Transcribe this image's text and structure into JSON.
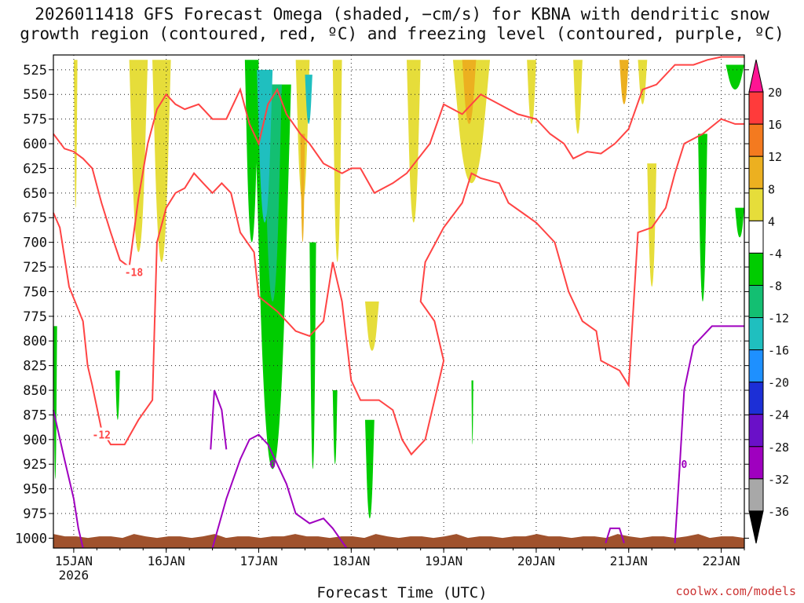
{
  "title": {
    "line1": "2026011418 GFS Forecast Omega (shaded, −cm/s) for KBNA with dendritic snow",
    "line2": "growth region (contoured, red, ºC) and freezing level (contoured, purple, ºC)"
  },
  "xlabel": "Forecast Time (UTC)",
  "credit": "coolwx.com/models",
  "chart_data": {
    "type": "heatmap",
    "y_axis": {
      "label": "",
      "ticks": [
        525,
        550,
        575,
        600,
        625,
        650,
        675,
        700,
        725,
        750,
        775,
        800,
        825,
        850,
        875,
        900,
        925,
        950,
        975,
        1000
      ],
      "range": [
        1010,
        510
      ],
      "inverted": true,
      "grid": true
    },
    "x_axis": {
      "tick_labels": [
        "15JAN",
        "16JAN",
        "17JAN",
        "18JAN",
        "19JAN",
        "20JAN",
        "21JAN",
        "22JAN"
      ],
      "tick_positions": [
        1,
        2,
        3,
        4,
        5,
        6,
        7,
        8
      ],
      "first_tick_sublabel": "2026",
      "range": [
        0.78,
        8.25
      ],
      "grid": true
    },
    "colorbar": {
      "labels": [
        "20",
        "16",
        "12",
        "8",
        "4",
        "-4",
        "-8",
        "-12",
        "-16",
        "-20",
        "-24",
        "-28",
        "-32",
        "-36"
      ],
      "colors": [
        "#ff1493",
        "#ff3b3b",
        "#f47a1f",
        "#ecb020",
        "#e6dd3a",
        "#ffffff",
        "#00cc00",
        "#13bf72",
        "#1fbfbf",
        "#1e90ff",
        "#1c2fd6",
        "#6a10c8",
        "#9f00bf",
        "#a8a8a8",
        "#000000"
      ]
    },
    "omega_shading": [
      {
        "class": "4",
        "x": [
          1.0,
          1.04
        ],
        "p": [
          515,
          665
        ],
        "color": "#e6dd3a"
      },
      {
        "class": "4",
        "x": [
          1.6,
          1.8
        ],
        "p": [
          515,
          710
        ],
        "color": "#e6dd3a"
      },
      {
        "class": "4",
        "x": [
          1.85,
          2.05
        ],
        "p": [
          515,
          720
        ],
        "color": "#e6dd3a"
      },
      {
        "class": "4",
        "x": [
          3.4,
          3.55
        ],
        "p": [
          515,
          660
        ],
        "color": "#e6dd3a"
      },
      {
        "class": "4",
        "x": [
          3.8,
          3.9
        ],
        "p": [
          515,
          720
        ],
        "color": "#e6dd3a"
      },
      {
        "class": "4",
        "x": [
          4.6,
          4.75
        ],
        "p": [
          515,
          680
        ],
        "color": "#e6dd3a"
      },
      {
        "class": "4",
        "x": [
          5.1,
          5.5
        ],
        "p": [
          515,
          640
        ],
        "color": "#e6dd3a"
      },
      {
        "class": "4",
        "x": [
          5.9,
          6.0
        ],
        "p": [
          515,
          580
        ],
        "color": "#e6dd3a"
      },
      {
        "class": "4",
        "x": [
          6.4,
          6.5
        ],
        "p": [
          515,
          590
        ],
        "color": "#e6dd3a"
      },
      {
        "class": "4",
        "x": [
          7.1,
          7.2
        ],
        "p": [
          515,
          560
        ],
        "color": "#e6dd3a"
      },
      {
        "class": "4",
        "x": [
          7.2,
          7.3
        ],
        "p": [
          620,
          745
        ],
        "color": "#e6dd3a"
      },
      {
        "class": "4",
        "x": [
          4.15,
          4.3
        ],
        "p": [
          760,
          810
        ],
        "color": "#e6dd3a"
      },
      {
        "class": "8",
        "x": [
          3.45,
          3.5
        ],
        "p": [
          590,
          700
        ],
        "color": "#ecb020"
      },
      {
        "class": "8",
        "x": [
          5.2,
          5.35
        ],
        "p": [
          515,
          580
        ],
        "color": "#ecb020"
      },
      {
        "class": "8",
        "x": [
          6.9,
          7.0
        ],
        "p": [
          515,
          560
        ],
        "color": "#ecb020"
      },
      {
        "class": "-4",
        "x": [
          2.85,
          3.0
        ],
        "p": [
          515,
          700
        ],
        "color": "#00cc00"
      },
      {
        "class": "-4",
        "x": [
          2.95,
          3.35
        ],
        "p": [
          540,
          930
        ],
        "color": "#00cc00"
      },
      {
        "class": "-4",
        "x": [
          3.55,
          3.62
        ],
        "p": [
          700,
          930
        ],
        "color": "#00cc00"
      },
      {
        "class": "-4",
        "x": [
          3.8,
          3.85
        ],
        "p": [
          850,
          925
        ],
        "color": "#00cc00"
      },
      {
        "class": "-4",
        "x": [
          4.15,
          4.25
        ],
        "p": [
          880,
          980
        ],
        "color": "#00cc00"
      },
      {
        "class": "-4",
        "x": [
          0.78,
          0.82
        ],
        "p": [
          785,
          940
        ],
        "color": "#00cc00"
      },
      {
        "class": "-4",
        "x": [
          1.45,
          1.5
        ],
        "p": [
          830,
          880
        ],
        "color": "#00cc00"
      },
      {
        "class": "-4",
        "x": [
          5.3,
          5.32
        ],
        "p": [
          840,
          905
        ],
        "color": "#00cc00"
      },
      {
        "class": "-4",
        "x": [
          7.75,
          7.85
        ],
        "p": [
          590,
          760
        ],
        "color": "#00cc00"
      },
      {
        "class": "-4",
        "x": [
          8.05,
          8.25
        ],
        "p": [
          520,
          545
        ],
        "color": "#00cc00"
      },
      {
        "class": "-4",
        "x": [
          8.15,
          8.25
        ],
        "p": [
          665,
          695
        ],
        "color": "#00cc00"
      },
      {
        "class": "-8",
        "x": [
          3.05,
          3.25
        ],
        "p": [
          540,
          760
        ],
        "color": "#13bf72"
      },
      {
        "class": "-12",
        "x": [
          2.98,
          3.15
        ],
        "p": [
          525,
          680
        ],
        "color": "#1fbfbf"
      },
      {
        "class": "-12",
        "x": [
          3.5,
          3.58
        ],
        "p": [
          530,
          580
        ],
        "color": "#1fbfbf"
      }
    ],
    "dgz_contours": {
      "color": "#ff4444",
      "lines": [
        {
          "label": "-18",
          "label_at": [
            1.65,
            730
          ],
          "points": [
            [
              0.78,
              590
            ],
            [
              0.9,
              605
            ],
            [
              1.0,
              608
            ],
            [
              1.1,
              615
            ],
            [
              1.2,
              625
            ],
            [
              1.3,
              660
            ],
            [
              1.4,
              690
            ],
            [
              1.5,
              718
            ],
            [
              1.6,
              725
            ],
            [
              1.7,
              655
            ],
            [
              1.8,
              600
            ],
            [
              1.9,
              565
            ],
            [
              2.0,
              550
            ],
            [
              2.1,
              560
            ],
            [
              2.2,
              565
            ],
            [
              2.35,
              560
            ],
            [
              2.5,
              575
            ],
            [
              2.65,
              575
            ],
            [
              2.8,
              545
            ],
            [
              2.9,
              580
            ],
            [
              3.0,
              600
            ],
            [
              3.1,
              560
            ],
            [
              3.2,
              545
            ],
            [
              3.3,
              570
            ],
            [
              3.45,
              590
            ],
            [
              3.55,
              600
            ],
            [
              3.7,
              620
            ],
            [
              3.9,
              630
            ],
            [
              4.0,
              625
            ],
            [
              4.1,
              625
            ],
            [
              4.25,
              650
            ],
            [
              4.45,
              640
            ],
            [
              4.6,
              630
            ],
            [
              4.85,
              600
            ],
            [
              5.0,
              560
            ],
            [
              5.2,
              570
            ],
            [
              5.4,
              550
            ],
            [
              5.6,
              560
            ],
            [
              5.8,
              570
            ],
            [
              6.0,
              575
            ],
            [
              6.15,
              590
            ],
            [
              6.3,
              600
            ],
            [
              6.4,
              615
            ],
            [
              6.55,
              608
            ],
            [
              6.7,
              610
            ],
            [
              6.85,
              600
            ],
            [
              7.0,
              585
            ],
            [
              7.15,
              545
            ],
            [
              7.3,
              540
            ],
            [
              7.5,
              520
            ],
            [
              7.7,
              520
            ],
            [
              7.85,
              515
            ],
            [
              8.0,
              512
            ],
            [
              8.25,
              512
            ]
          ]
        },
        {
          "label": "-12",
          "label_at": [
            1.3,
            895
          ],
          "points": [
            [
              0.78,
              670
            ],
            [
              0.85,
              685
            ],
            [
              0.95,
              745
            ],
            [
              1.1,
              780
            ],
            [
              1.15,
              825
            ],
            [
              1.2,
              845
            ],
            [
              1.3,
              890
            ],
            [
              1.4,
              905
            ],
            [
              1.55,
              905
            ],
            [
              1.7,
              880
            ],
            [
              1.85,
              860
            ],
            [
              1.9,
              700
            ],
            [
              2.0,
              665
            ],
            [
              2.1,
              650
            ],
            [
              2.2,
              645
            ],
            [
              2.3,
              630
            ],
            [
              2.4,
              640
            ],
            [
              2.5,
              650
            ],
            [
              2.6,
              640
            ],
            [
              2.7,
              650
            ],
            [
              2.8,
              690
            ],
            [
              2.95,
              710
            ],
            [
              3.0,
              755
            ],
            [
              3.2,
              770
            ],
            [
              3.3,
              780
            ],
            [
              3.4,
              790
            ],
            [
              3.55,
              795
            ],
            [
              3.7,
              780
            ],
            [
              3.8,
              720
            ],
            [
              3.9,
              760
            ],
            [
              3.95,
              800
            ],
            [
              4.0,
              840
            ],
            [
              4.1,
              860
            ],
            [
              4.3,
              860
            ],
            [
              4.45,
              870
            ],
            [
              4.55,
              900
            ],
            [
              4.65,
              915
            ],
            [
              4.8,
              900
            ],
            [
              4.9,
              860
            ],
            [
              5.0,
              820
            ],
            [
              4.9,
              780
            ],
            [
              4.75,
              760
            ],
            [
              4.8,
              720
            ],
            [
              5.0,
              685
            ],
            [
              5.2,
              660
            ],
            [
              5.3,
              630
            ],
            [
              5.4,
              635
            ],
            [
              5.6,
              640
            ],
            [
              5.7,
              660
            ],
            [
              5.85,
              670
            ],
            [
              6.0,
              680
            ],
            [
              6.2,
              700
            ],
            [
              6.35,
              750
            ],
            [
              6.5,
              780
            ],
            [
              6.65,
              790
            ],
            [
              6.7,
              820
            ],
            [
              6.9,
              830
            ],
            [
              7.0,
              845
            ],
            [
              7.1,
              690
            ],
            [
              7.25,
              685
            ],
            [
              7.4,
              665
            ],
            [
              7.5,
              630
            ],
            [
              7.6,
              600
            ],
            [
              7.8,
              590
            ],
            [
              8.0,
              575
            ],
            [
              8.15,
              580
            ],
            [
              8.25,
              580
            ]
          ]
        }
      ]
    },
    "freezing_level": {
      "color": "#9f00bf",
      "label": "0",
      "lines": [
        {
          "points": [
            [
              0.78,
              870
            ],
            [
              0.9,
              920
            ],
            [
              1.0,
              960
            ],
            [
              1.05,
              990
            ],
            [
              1.1,
              1010
            ]
          ]
        },
        {
          "points": [
            [
              2.5,
              1010
            ],
            [
              2.65,
              960
            ],
            [
              2.8,
              920
            ],
            [
              2.9,
              900
            ],
            [
              3.0,
              895
            ],
            [
              3.1,
              905
            ],
            [
              3.2,
              925
            ],
            [
              3.3,
              945
            ],
            [
              3.4,
              975
            ],
            [
              3.55,
              985
            ],
            [
              3.7,
              980
            ],
            [
              3.8,
              990
            ],
            [
              3.95,
              1010
            ]
          ]
        },
        {
          "points": [
            [
              2.48,
              910
            ],
            [
              2.52,
              850
            ],
            [
              2.6,
              870
            ],
            [
              2.65,
              910
            ]
          ]
        },
        {
          "points": [
            [
              7.5,
              1005
            ],
            [
              7.55,
              930
            ],
            [
              7.6,
              850
            ],
            [
              7.7,
              805
            ],
            [
              7.9,
              785
            ],
            [
              8.0,
              785
            ],
            [
              8.25,
              785
            ]
          ]
        },
        {
          "points": [
            [
              6.75,
              1005
            ],
            [
              6.8,
              990
            ],
            [
              6.9,
              990
            ],
            [
              6.95,
              1005
            ]
          ]
        }
      ]
    },
    "terrain": {
      "color": "#a0522d",
      "surface_pressure": 995
    }
  }
}
